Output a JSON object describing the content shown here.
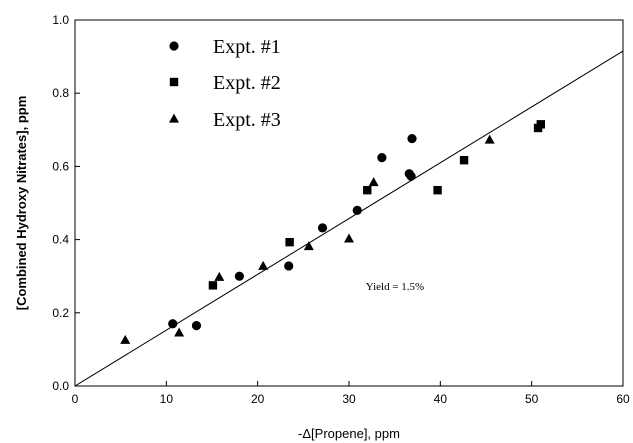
{
  "chart_data": {
    "type": "scatter",
    "xlabel": "-Δ[Propene], ppm",
    "ylabel": "[Combined Hydroxy Nitrates], ppm",
    "xlim": [
      0,
      60
    ],
    "ylim": [
      0,
      1.0
    ],
    "xticks": [
      0,
      10,
      20,
      30,
      40,
      50,
      60
    ],
    "yticks": [
      0.0,
      0.2,
      0.4,
      0.6,
      0.8,
      1.0
    ],
    "ytick_labels": [
      "0.0",
      "0.2",
      "0.4",
      "0.6",
      "0.8",
      "1.0"
    ],
    "grid": false,
    "legend_position": "top-left",
    "series": [
      {
        "name": "Expt. #1",
        "marker": "circle",
        "points": [
          [
            10.7,
            0.17
          ],
          [
            13.3,
            0.165
          ],
          [
            18.0,
            0.3
          ],
          [
            23.4,
            0.328
          ],
          [
            27.1,
            0.432
          ],
          [
            30.9,
            0.48
          ],
          [
            33.6,
            0.624
          ],
          [
            36.6,
            0.58
          ],
          [
            36.8,
            0.573
          ],
          [
            36.9,
            0.676
          ]
        ]
      },
      {
        "name": "Expt. #2",
        "marker": "square",
        "points": [
          [
            15.1,
            0.275
          ],
          [
            23.5,
            0.393
          ],
          [
            32.0,
            0.535
          ],
          [
            39.7,
            0.535
          ],
          [
            42.6,
            0.617
          ],
          [
            50.7,
            0.705
          ],
          [
            51.0,
            0.715
          ]
        ]
      },
      {
        "name": "Expt. #3",
        "marker": "triangle",
        "points": [
          [
            5.5,
            0.125
          ],
          [
            11.4,
            0.145
          ],
          [
            15.8,
            0.297
          ],
          [
            20.6,
            0.327
          ],
          [
            25.6,
            0.381
          ],
          [
            30.0,
            0.402
          ],
          [
            32.7,
            0.556
          ],
          [
            45.4,
            0.672
          ]
        ]
      }
    ],
    "fit_line": {
      "points": [
        [
          0,
          0
        ],
        [
          60,
          0.915
        ]
      ]
    },
    "annotation": "Yield = 1.5%"
  }
}
